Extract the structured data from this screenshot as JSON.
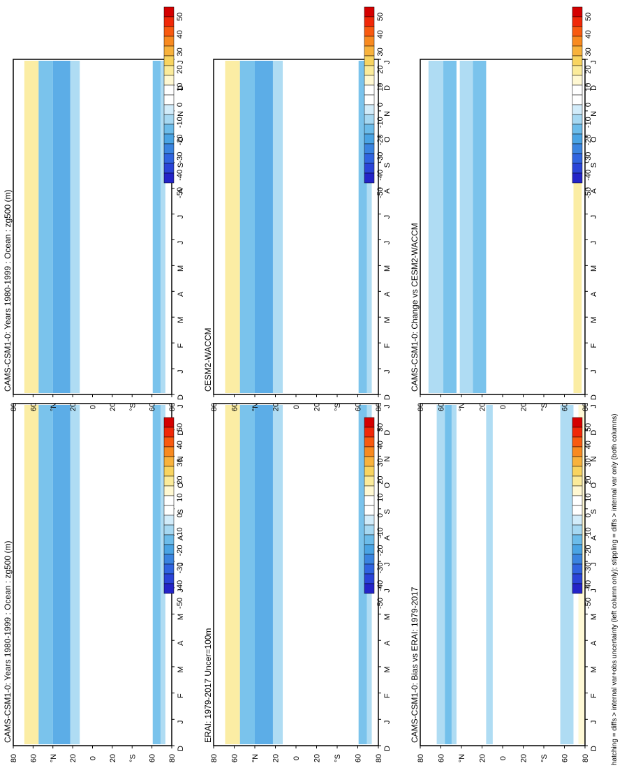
{
  "footer_note": "hatching = diffs > internal var+obs uncertainty (left column only); stippling = diffs > internal var only (both columns)",
  "palette": {
    "levels": [
      "50",
      "40",
      "30",
      "20",
      "10",
      "0",
      "-10",
      "-20",
      "-30",
      "-40",
      "-50"
    ],
    "colors": [
      "#d40000",
      "#f02808",
      "#f85a10",
      "#f88a20",
      "#f8b23c",
      "#f8d460",
      "#fbeb9a",
      "#fff8d2",
      "#ffffff",
      "#ffffff",
      "#d2ecfa",
      "#a6d8f2",
      "#6cbcea",
      "#4aa4e4",
      "#3a84e0",
      "#3064e0",
      "#2a44d8",
      "#2424c8"
    ]
  },
  "chart_data": [
    {
      "type": "heatmap",
      "title": "CAMS-CSM1-0: Years 1980-1999 : Ocean : zg500 (m)",
      "x_ticks": [
        "D",
        "J",
        "F",
        "M",
        "A",
        "M",
        "J",
        "J",
        "A",
        "S",
        "O",
        "N",
        "D",
        "J"
      ],
      "y_ticks": [
        "80",
        "60",
        "°N",
        "20",
        "0",
        "20",
        "°S",
        "60",
        "80"
      ],
      "stippling": "few points"
    },
    {
      "type": "heatmap",
      "title": "ERAI: 1979-2017 Uncer=100m",
      "x_ticks": [
        "D",
        "J",
        "F",
        "M",
        "A",
        "M",
        "J",
        "J",
        "A",
        "S",
        "O",
        "N",
        "D",
        "J"
      ],
      "y_ticks": [
        "80",
        "60",
        "°N",
        "20",
        "0",
        "20",
        "°S",
        "60",
        "80"
      ],
      "stippling": "few points"
    },
    {
      "type": "heatmap",
      "title": "CAMS-CSM1-0: Bias vs ERAI: 1979-2017",
      "x_ticks": [
        "D",
        "J",
        "F",
        "M",
        "A",
        "M",
        "J",
        "J",
        "A",
        "S",
        "O",
        "N",
        "D",
        "J"
      ],
      "y_ticks": [
        "80",
        "60",
        "°N",
        "20",
        "0",
        "20",
        "°S",
        "60",
        "80"
      ],
      "stippling": "few points"
    },
    {
      "type": "heatmap",
      "title": "CAMS-CSM1-0: Years 1980-1999 : Ocean : zg500 (m)",
      "x_ticks": [
        "D",
        "J",
        "F",
        "M",
        "A",
        "M",
        "J",
        "J",
        "A",
        "S",
        "O",
        "N",
        "D",
        "J"
      ],
      "y_ticks": [
        "80",
        "60",
        "°N",
        "20",
        "0",
        "20",
        "°S",
        "60",
        "80"
      ],
      "stippling": "Jan, Apr-May, Jul-Sep, Dec"
    },
    {
      "type": "heatmap",
      "title": "CESM2-WACCM",
      "x_ticks": [
        "D",
        "J",
        "F",
        "M",
        "A",
        "M",
        "J",
        "J",
        "A",
        "S",
        "O",
        "N",
        "D",
        "J"
      ],
      "y_ticks": [
        "80",
        "60",
        "°N",
        "20",
        "0",
        "20",
        "°S",
        "60",
        "80"
      ],
      "stippling": "Jan, Apr-May, Jul-Sep, Dec"
    },
    {
      "type": "heatmap",
      "title": "CAMS-CSM1-0: Change vs CESM2-WACCM",
      "x_ticks": [
        "D",
        "J",
        "F",
        "M",
        "A",
        "M",
        "J",
        "J",
        "A",
        "S",
        "O",
        "N",
        "D",
        "J"
      ],
      "y_ticks": [
        "80",
        "60",
        "°N",
        "20",
        "0",
        "20",
        "°S",
        "60",
        "80"
      ],
      "stippling": "Jan, Apr-May, Jul-Sep, Dec"
    }
  ]
}
